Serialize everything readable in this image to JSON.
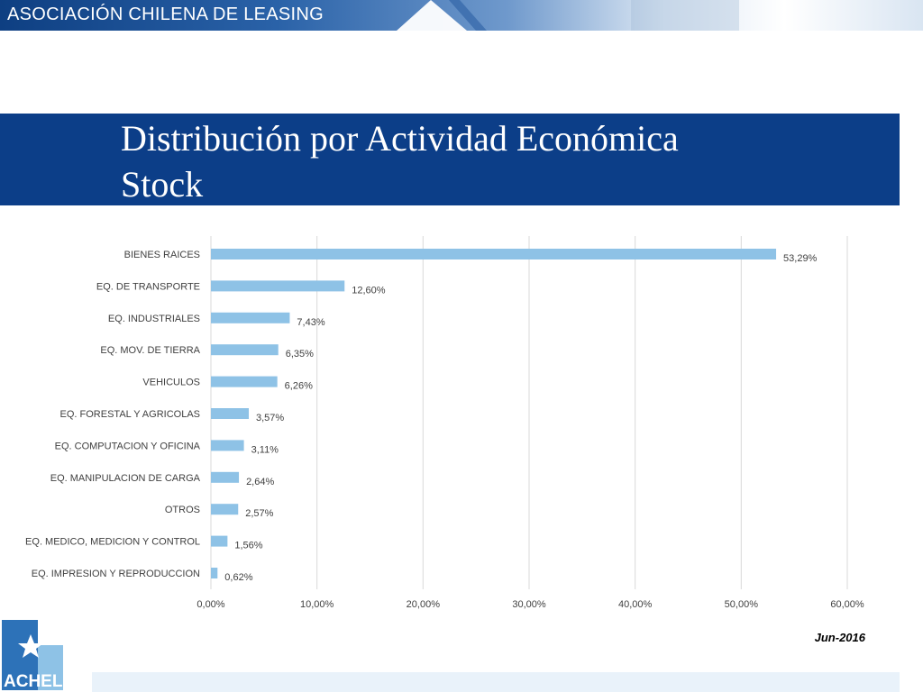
{
  "header": {
    "organization": "ASOCIACIÓN CHILENA DE LEASING"
  },
  "slide": {
    "title": "Distribución por Actividad Económica\nStock",
    "date_label": "Jun-2016",
    "logo_text": "ACHEL"
  },
  "colors": {
    "bar": "#8ec2e6",
    "title_bar": "#0c3e88",
    "grid": "#d9d9d9",
    "text": "#404040"
  },
  "chart_data": {
    "type": "bar",
    "orientation": "horizontal",
    "categories": [
      "BIENES RAICES",
      "EQ. DE TRANSPORTE",
      "EQ. INDUSTRIALES",
      "EQ. MOV. DE TIERRA",
      "VEHICULOS",
      "EQ. FORESTAL Y AGRICOLAS",
      "EQ. COMPUTACION Y OFICINA",
      "EQ. MANIPULACION DE CARGA",
      "OTROS",
      "EQ. MEDICO, MEDICION Y CONTROL",
      "EQ. IMPRESION Y REPRODUCCION"
    ],
    "values": [
      53.29,
      12.6,
      7.43,
      6.35,
      6.26,
      3.57,
      3.11,
      2.64,
      2.57,
      1.56,
      0.62
    ],
    "data_labels": [
      "53,29%",
      "12,60%",
      "7,43%",
      "6,35%",
      "6,26%",
      "3,57%",
      "3,11%",
      "2,64%",
      "2,57%",
      "1,56%",
      "0,62%"
    ],
    "x_ticks": [
      0,
      10,
      20,
      30,
      40,
      50,
      60
    ],
    "x_tick_labels": [
      "0,00%",
      "10,00%",
      "20,00%",
      "30,00%",
      "40,00%",
      "50,00%",
      "60,00%"
    ],
    "xlim": [
      0,
      60
    ],
    "grid": true,
    "legend": "none",
    "title": "",
    "xlabel": "",
    "ylabel": ""
  }
}
